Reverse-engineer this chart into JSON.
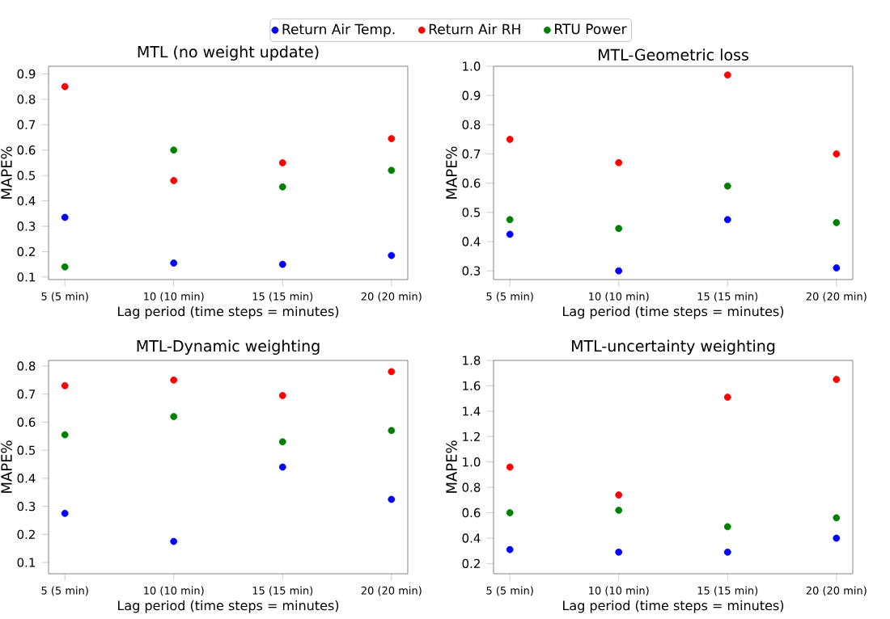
{
  "chart_data": [
    {
      "type": "scatter",
      "title": "MTL (no weight update)",
      "xlabel": "Lag period (time steps = minutes)",
      "ylabel": "MAPE%",
      "categories": [
        "5 (5 min)",
        "10 (10 min)",
        "15 (15 min)",
        "20 (20 min)"
      ],
      "ylim": [
        0.09,
        0.93
      ],
      "yticks": [
        0.1,
        0.2,
        0.3,
        0.4,
        0.5,
        0.6,
        0.7,
        0.8,
        0.9
      ],
      "marker": "circle",
      "legend": "top",
      "grid": false,
      "series": [
        {
          "name": "Return Air Temp.",
          "color": "#0000ff",
          "values": [
            0.335,
            0.155,
            0.15,
            0.185
          ]
        },
        {
          "name": "Return Air RH",
          "color": "#ff0000",
          "values": [
            0.85,
            0.48,
            0.55,
            0.645
          ]
        },
        {
          "name": "RTU Power",
          "color": "#008000",
          "values": [
            0.14,
            0.6,
            0.455,
            0.52
          ]
        }
      ]
    },
    {
      "type": "scatter",
      "title": "MTL-Geometric loss",
      "xlabel": "Lag period (time steps = minutes)",
      "ylabel": "MAPE%",
      "categories": [
        "5 (5 min)",
        "10 (10 min)",
        "15 (15 min)",
        "20 (20 min)"
      ],
      "ylim": [
        0.27,
        1.0
      ],
      "yticks": [
        0.3,
        0.4,
        0.5,
        0.6,
        0.7,
        0.8,
        0.9,
        {
          "value": 1.0,
          "label": "1.0"
        }
      ],
      "marker": "circle",
      "grid": false,
      "series": [
        {
          "color": "#0000ff",
          "values": [
            0.425,
            0.3,
            0.475,
            0.31
          ]
        },
        {
          "color": "#ff0000",
          "values": [
            0.75,
            0.67,
            0.97,
            0.7
          ]
        },
        {
          "color": "#008000",
          "values": [
            0.475,
            0.445,
            0.59,
            0.465
          ]
        }
      ]
    },
    {
      "type": "scatter",
      "title": "MTL-Dynamic weighting",
      "xlabel": "Lag period (time steps = minutes)",
      "ylabel": "MAPE%",
      "categories": [
        "5 (5 min)",
        "10 (10 min)",
        "15 (15 min)",
        "20 (20 min)"
      ],
      "ylim": [
        0.06,
        0.82
      ],
      "yticks": [
        0.1,
        0.2,
        0.3,
        0.4,
        0.5,
        0.6,
        0.7,
        0.8
      ],
      "marker": "circle",
      "grid": false,
      "series": [
        {
          "color": "#0000ff",
          "values": [
            0.275,
            0.175,
            0.44,
            0.325
          ]
        },
        {
          "color": "#ff0000",
          "values": [
            0.73,
            0.75,
            0.695,
            0.78
          ]
        },
        {
          "color": "#008000",
          "values": [
            0.555,
            0.62,
            0.53,
            0.57
          ]
        }
      ]
    },
    {
      "type": "scatter",
      "title": "MTL-uncertainty weighting",
      "xlabel": "Lag period (time steps = minutes)",
      "ylabel": "MAPE%",
      "categories": [
        "5 (5 min)",
        "10 (10 min)",
        "15 (15 min)",
        "20 (20 min)"
      ],
      "ylim": [
        0.12,
        1.8
      ],
      "yticks": [
        0.2,
        0.4,
        0.6,
        0.8,
        {
          "value": 1.0,
          "label": "1.0"
        },
        1.2,
        1.4,
        1.6,
        1.8
      ],
      "marker": "circle",
      "grid": false,
      "series": [
        {
          "color": "#0000ff",
          "values": [
            0.31,
            0.29,
            0.29,
            0.4
          ]
        },
        {
          "color": "#ff0000",
          "values": [
            0.96,
            0.74,
            1.51,
            1.65
          ]
        },
        {
          "color": "#008000",
          "values": [
            0.6,
            0.62,
            0.49,
            0.56
          ]
        }
      ]
    }
  ]
}
